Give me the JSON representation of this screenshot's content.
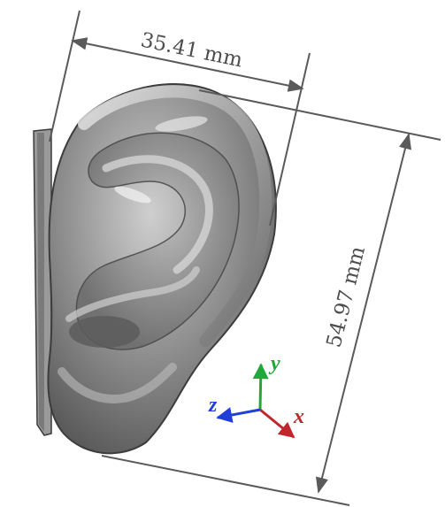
{
  "dimensions": {
    "width_label": "35.41 mm",
    "height_label": "54.97 mm"
  },
  "axes": {
    "x": {
      "label": "x",
      "color": "#c0272d"
    },
    "y": {
      "label": "y",
      "color": "#22a83a"
    },
    "z": {
      "label": "z",
      "color": "#1f3fd6"
    }
  },
  "colors": {
    "dimension_line": "#5a5a5a",
    "model_fill": "#8c8c8c",
    "model_edge": "#3c3c3c"
  }
}
